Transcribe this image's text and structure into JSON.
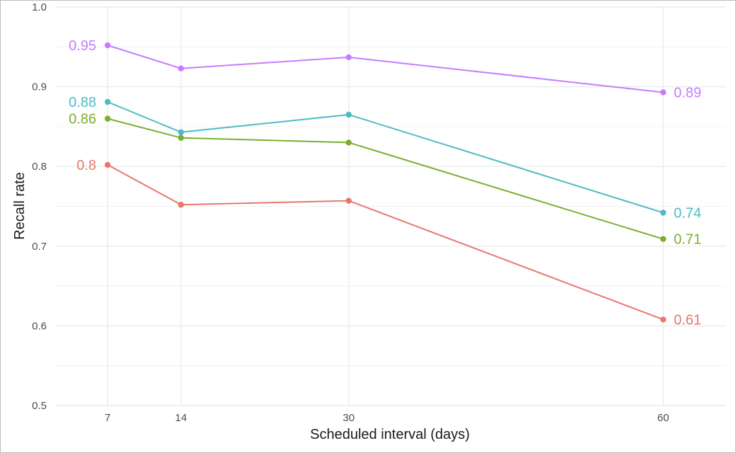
{
  "chart_data": {
    "type": "line",
    "title": "",
    "xlabel": "Scheduled interval (days)",
    "ylabel": "Recall rate",
    "x": [
      7,
      14,
      30,
      60
    ],
    "xticks": [
      "7",
      "14",
      "30",
      "60"
    ],
    "yticks": [
      "0.5",
      "0.6",
      "0.7",
      "0.8",
      "0.9",
      "1.0"
    ],
    "xlim": [
      2,
      66
    ],
    "ylim": [
      0.5,
      1.0
    ],
    "grid": true,
    "legend": "none",
    "series": [
      {
        "color": "#C77CFF",
        "values": [
          0.952,
          0.923,
          0.937,
          0.893
        ],
        "start_label": "0.95",
        "end_label": "0.89"
      },
      {
        "color": "#4DBBC5",
        "values": [
          0.881,
          0.843,
          0.865,
          0.742
        ],
        "start_label": "0.88",
        "end_label": "0.74"
      },
      {
        "color": "#7CAE2F",
        "values": [
          0.86,
          0.836,
          0.83,
          0.709
        ],
        "start_label": "0.86",
        "end_label": "0.71"
      },
      {
        "color": "#E8776F",
        "values": [
          0.802,
          0.752,
          0.757,
          0.608
        ],
        "start_label": "0.8",
        "end_label": "0.61"
      }
    ]
  }
}
